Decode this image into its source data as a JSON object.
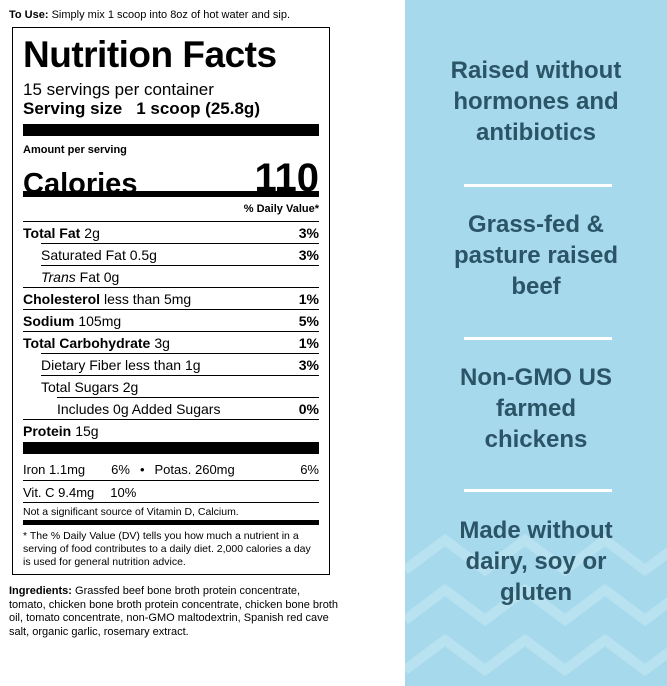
{
  "use": {
    "label": "To Use:",
    "text": "Simply mix 1 scoop into 8oz of hot water and sip."
  },
  "nutrition": {
    "title": "Nutrition Facts",
    "servings": "15 servings per container",
    "serving_size_label": "Serving size",
    "serving_size": "1 scoop (25.8g)",
    "amount_per_serving": "Amount per serving",
    "calories_label": "Calories",
    "calories": "110",
    "dv_header": "% Daily Value*",
    "rows": [
      {
        "name": "Total Fat",
        "amount": "2g",
        "dv": "3%"
      },
      {
        "name": "Saturated Fat 0.5g",
        "dv": "3%"
      },
      {
        "name": "Trans",
        "amount": "Fat 0g"
      },
      {
        "name": "Cholesterol",
        "amount": "less than 5mg",
        "dv": "1%"
      },
      {
        "name": "Sodium",
        "amount": "105mg",
        "dv": "5%"
      },
      {
        "name": "Total Carbohydrate",
        "amount": "3g",
        "dv": "1%"
      },
      {
        "name": "Dietary Fiber less than 1g",
        "dv": "3%"
      },
      {
        "name": "Total Sugars 2g"
      },
      {
        "name": "Includes 0g Added Sugars",
        "dv": "0%"
      },
      {
        "name": "Protein",
        "amount": "15g"
      }
    ],
    "iron": "Iron 1.1mg",
    "iron_dv": "6%",
    "bullet": "•",
    "potassium": "Potas. 260mg",
    "potassium_dv": "6%",
    "vitc": "Vit. C 9.4mg",
    "vitc_dv": "10%",
    "not_significant": "Not a significant source of Vitamin D, Calcium.",
    "footnote": "* The % Daily Value (DV) tells you how much a nutrient in a serving of food contributes to a daily diet. 2,000 calories a day is used for general nutrition advice."
  },
  "ingredients": {
    "label": "Ingredients:",
    "text": "Grassfed beef bone broth protein concentrate, tomato, chicken bone broth protein concentrate, chicken bone broth oil, tomato concentrate, non-GMO maltodextrin, Spanish red cave salt, organic garlic, rosemary extract."
  },
  "claims": [
    {
      "lines": [
        "Raised without",
        "hormones and",
        "antibiotics"
      ]
    },
    {
      "lines": [
        "Grass-fed &",
        "pasture raised",
        "beef"
      ]
    },
    {
      "lines": [
        "Non-GMO US",
        "farmed",
        "chickens"
      ]
    },
    {
      "lines": [
        "Made without",
        "dairy, soy or",
        "gluten"
      ]
    }
  ]
}
